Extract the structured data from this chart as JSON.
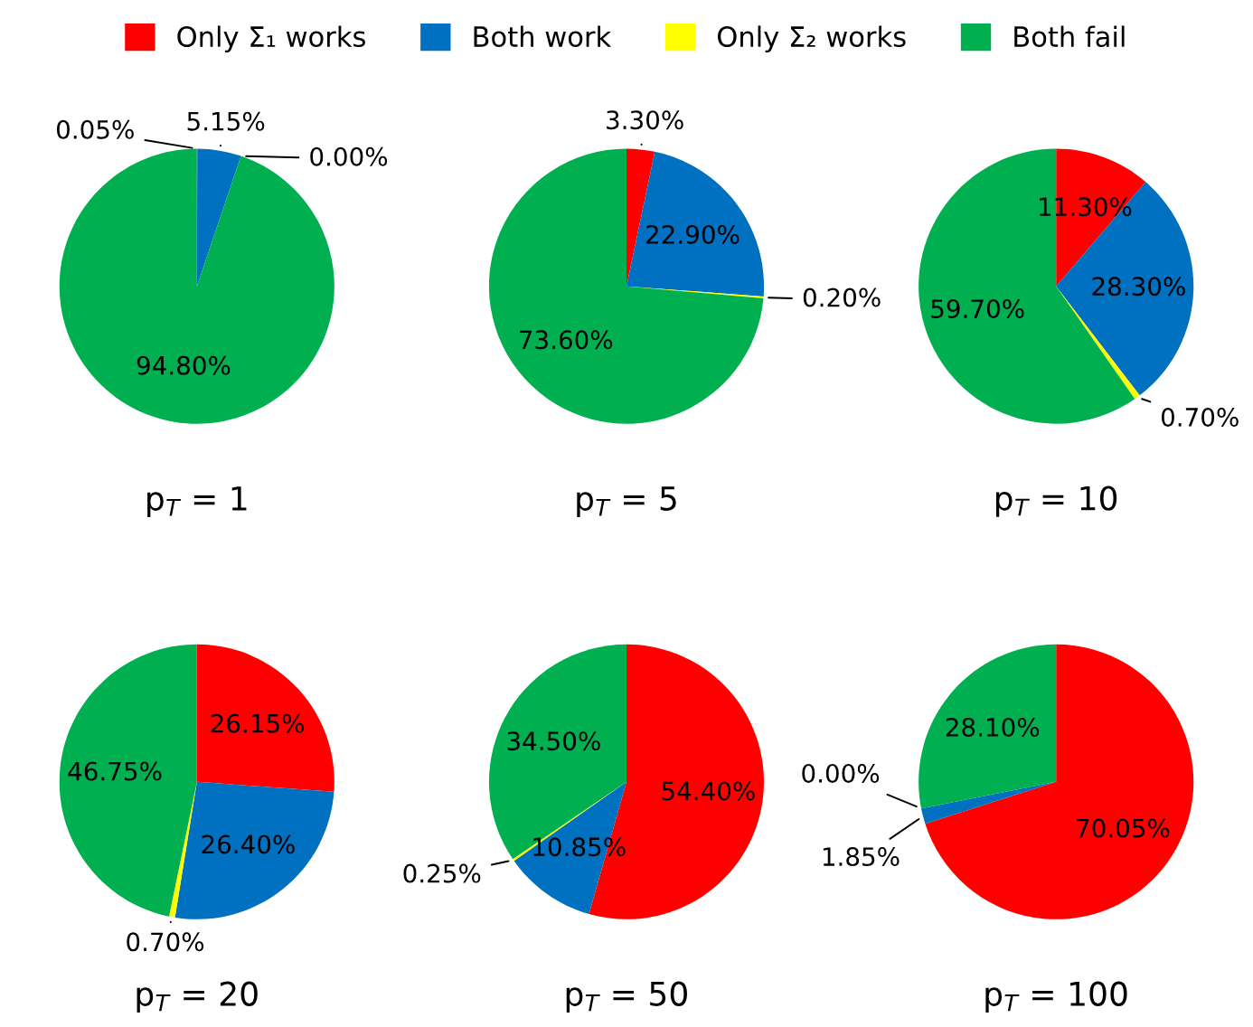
{
  "chart_data": [
    {
      "type": "pie",
      "title": "p$_{T}$ = 1",
      "categories": [
        "Only Σ₁ works",
        "Both work",
        "Only Σ₂ works",
        "Both fail"
      ],
      "values": [
        0.05,
        5.15,
        0.0,
        94.8
      ],
      "value_labels": [
        "0.05%",
        "5.15%",
        "0.00%",
        "94.80%"
      ],
      "colors": [
        "#ff0000",
        "#0070c0",
        "#ffff00",
        "#00b050"
      ],
      "legend": "top"
    },
    {
      "type": "pie",
      "title": "p$_{T}$ = 5",
      "categories": [
        null,
        null,
        null,
        null
      ],
      "values": [
        3.3,
        22.9,
        0.2,
        73.6
      ],
      "value_labels": [
        "3.30%",
        "22.90%",
        "0.20%",
        "73.60%"
      ],
      "colors": [
        "#ff0000",
        "#0070c0",
        "#ffff00",
        "#00b050"
      ]
    },
    {
      "type": "pie",
      "title": "p$_{T}$ = 10",
      "categories": [
        null,
        null,
        null,
        null
      ],
      "values": [
        11.3,
        28.3,
        0.7,
        59.7
      ],
      "value_labels": [
        "11.30%",
        "28.30%",
        "0.70%",
        "59.70%"
      ],
      "colors": [
        "#ff0000",
        "#0070c0",
        "#ffff00",
        "#00b050"
      ]
    },
    {
      "type": "pie",
      "title": "p$_{T}$ = 20",
      "categories": [
        null,
        null,
        null,
        null
      ],
      "values": [
        26.15,
        26.4,
        0.7,
        46.75
      ],
      "value_labels": [
        "26.15%",
        "26.40%",
        "0.70%",
        "46.75%"
      ],
      "colors": [
        "#ff0000",
        "#0070c0",
        "#ffff00",
        "#00b050"
      ]
    },
    {
      "type": "pie",
      "title": "p$_{T}$ = 50",
      "categories": [
        null,
        null,
        null,
        null
      ],
      "values": [
        54.4,
        10.85,
        0.25,
        34.5
      ],
      "value_labels": [
        "54.40%",
        "10.85%",
        "0.25%",
        "34.50%"
      ],
      "colors": [
        "#ff0000",
        "#0070c0",
        "#ffff00",
        "#00b050"
      ]
    },
    {
      "type": "pie",
      "title": "p$_{T}$ = 100",
      "categories": [
        null,
        null,
        null,
        null
      ],
      "values": [
        70.05,
        1.85,
        0.0,
        28.1
      ],
      "value_labels": [
        "70.05%",
        "1.85%",
        "0.00%",
        "28.10%"
      ],
      "colors": [
        "#ff0000",
        "#0070c0",
        "#ffff00",
        "#00b050"
      ]
    }
  ]
}
